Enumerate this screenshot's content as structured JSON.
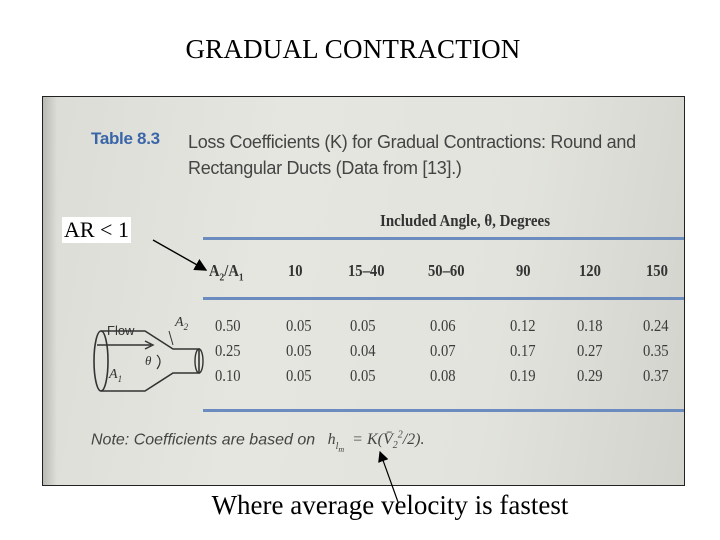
{
  "slide": {
    "title": "GRADUAL CONTRACTION",
    "ar_label": "AR < 1",
    "bottom_label": "Where average velocity is fastest"
  },
  "table": {
    "number": "Table 8.3",
    "caption": "Loss Coefficients (K) for Gradual Contractions: Round and Rectangular Ducts (Data from [13].)",
    "angle_header": "Included Angle, θ, Degrees",
    "ratio_header": "A2/A1",
    "columns": [
      "10",
      "15–40",
      "50–60",
      "90",
      "120",
      "150"
    ],
    "rows": [
      {
        "ratio": "0.50",
        "values": [
          "0.05",
          "0.05",
          "0.06",
          "0.12",
          "0.18",
          "0.24"
        ]
      },
      {
        "ratio": "0.25",
        "values": [
          "0.05",
          "0.04",
          "0.07",
          "0.17",
          "0.27",
          "0.35"
        ]
      },
      {
        "ratio": "0.10",
        "values": [
          "0.05",
          "0.05",
          "0.08",
          "0.19",
          "0.29",
          "0.37"
        ]
      }
    ],
    "note_prefix": "Note: Coefficients are based on",
    "note_equation": "h_lm = K(V2²/2)."
  },
  "diagram": {
    "flow_label": "Flow",
    "a1_label": "A1",
    "a2_label": "A2",
    "theta_label": "θ"
  },
  "colors": {
    "rule": "#6c8cc0",
    "table_number": "#3a66a8"
  }
}
